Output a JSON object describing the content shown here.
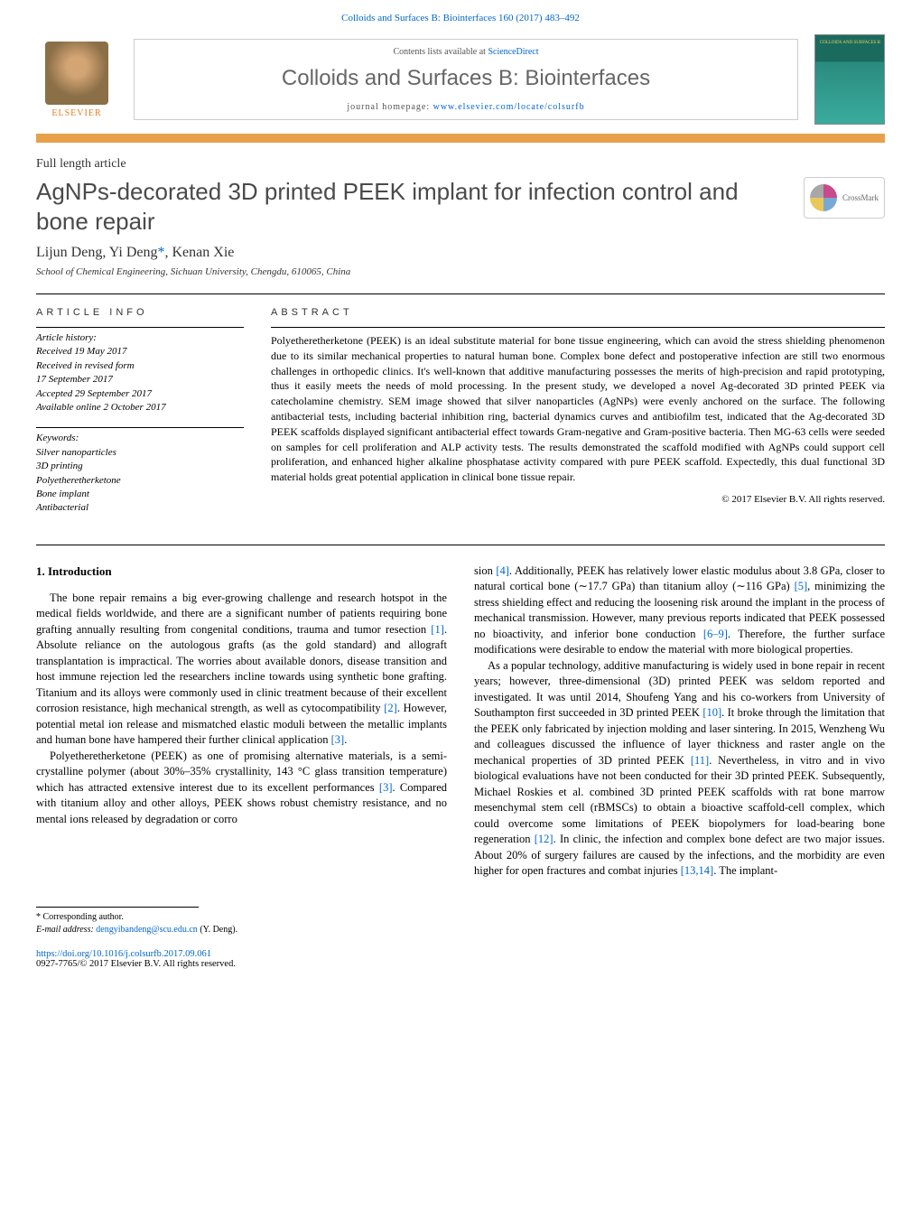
{
  "top_link_prefix": "Colloids and Surfaces B: Biointerfaces 160 (2017) 483–492",
  "header": {
    "contents_prefix": "Contents lists available at ",
    "contents_link": "ScienceDirect",
    "journal_name": "Colloids and Surfaces B: Biointerfaces",
    "homepage_prefix": "journal homepage: ",
    "homepage_url": "www.elsevier.com/locate/colsurfb",
    "elsevier_label": "ELSEVIER",
    "cover_text": "COLLOIDS AND SURFACES B"
  },
  "article_type": "Full length article",
  "title": "AgNPs-decorated 3D printed PEEK implant for infection control and bone repair",
  "crossmark_label": "CrossMark",
  "authors_html": "Lijun Deng, Yi Deng",
  "corresponding_mark": "*",
  "authors_rest": ", Kenan Xie",
  "affiliation": "School of Chemical Engineering, Sichuan University, Chengdu, 610065, China",
  "info": {
    "heading": "article info",
    "history_label": "Article history:",
    "received": "Received 19 May 2017",
    "revised1": "Received in revised form",
    "revised2": "17 September 2017",
    "accepted": "Accepted 29 September 2017",
    "online": "Available online 2 October 2017",
    "keywords_label": "Keywords:",
    "kw1": "Silver nanoparticles",
    "kw2": "3D printing",
    "kw3": "Polyetheretherketone",
    "kw4": "Bone implant",
    "kw5": "Antibacterial"
  },
  "abstract": {
    "heading": "abstract",
    "text": "Polyetheretherketone (PEEK) is an ideal substitute material for bone tissue engineering, which can avoid the stress shielding phenomenon due to its similar mechanical properties to natural human bone. Complex bone defect and postoperative infection are still two enormous challenges in orthopedic clinics. It's well-known that additive manufacturing possesses the merits of high-precision and rapid prototyping, thus it easily meets the needs of mold processing. In the present study, we developed a novel Ag-decorated 3D printed PEEK via catecholamine chemistry. SEM image showed that silver nanoparticles (AgNPs) were evenly anchored on the surface. The following antibacterial tests, including bacterial inhibition ring, bacterial dynamics curves and antibiofilm test, indicated that the Ag-decorated 3D PEEK scaffolds displayed significant antibacterial effect towards Gram-negative and Gram-positive bacteria. Then MG-63 cells were seeded on samples for cell proliferation and ALP activity tests. The results demonstrated the scaffold modified with AgNPs could support cell proliferation, and enhanced higher alkaline phosphatase activity compared with pure PEEK scaffold. Expectedly, this dual functional 3D material holds great potential application in clinical bone tissue repair.",
    "copyright": "© 2017 Elsevier B.V. All rights reserved."
  },
  "body": {
    "intro_heading": "1. Introduction",
    "p1a": "The bone repair remains a big ever-growing challenge and research hotspot in the medical fields worldwide, and there are a significant number of patients requiring bone grafting annually resulting from congenital conditions, trauma and tumor resection ",
    "c1": "[1]",
    "p1b": ". Absolute reliance on the autologous grafts (as the gold standard) and allograft transplantation is impractical. The worries about available donors, disease transition and host immune rejection led the researchers incline towards using synthetic bone grafting. Titanium and its alloys were commonly used in clinic treatment because of their excellent corrosion resistance, high mechanical strength, as well as cytocompatibility ",
    "c2": "[2]",
    "p1c": ". However, potential metal ion release and mismatched elastic moduli between the metallic implants and human bone have hampered their further clinical application ",
    "c3": "[3]",
    "p1d": ".",
    "p2a": "Polyetheretherketone (PEEK) as one of promising alternative materials, is a semi-crystalline polymer (about 30%–35% crystallinity, 143 °C glass transition temperature) which has attracted extensive interest due to its excellent performances ",
    "c3b": "[3]",
    "p2b": ". Compared with titanium alloy and other alloys, PEEK shows robust chemistry resistance, and no mental ions released by degradation or corro",
    "p3a": "sion ",
    "c4": "[4]",
    "p3b": ". Additionally, PEEK has relatively lower elastic modulus about 3.8 GPa, closer to natural cortical bone (∼17.7 GPa) than titanium alloy (∼116 GPa) ",
    "c5": "[5]",
    "p3c": ", minimizing the stress shielding effect and reducing the loosening risk around the implant in the process of mechanical transmission. However, many previous reports indicated that PEEK possessed no bioactivity, and inferior bone conduction ",
    "c69": "[6–9]",
    "p3d": ". Therefore, the further surface modifications were desirable to endow the material with more biological properties.",
    "p4a": "As a popular technology, additive manufacturing is widely used in bone repair in recent years; however, three-dimensional (3D) printed PEEK was seldom reported and investigated. It was until 2014, Shoufeng Yang and his co-workers from University of Southampton first succeeded in 3D printed PEEK ",
    "c10": "[10]",
    "p4b": ". It broke through the limitation that the PEEK only fabricated by injection molding and laser sintering. In 2015, Wenzheng Wu and colleagues discussed the influence of layer thickness and raster angle on the mechanical properties of 3D printed PEEK ",
    "c11": "[11]",
    "p4c": ". Nevertheless, in vitro and in vivo biological evaluations have not been conducted for their 3D printed PEEK. Subsequently, Michael Roskies et al. combined 3D printed PEEK scaffolds with rat bone marrow mesenchymal stem cell (rBMSCs) to obtain a bioactive scaffold-cell complex, which could overcome some limitations of PEEK biopolymers for load-bearing bone regeneration ",
    "c12": "[12]",
    "p4d": ". In clinic, the infection and complex bone defect are two major issues. About 20% of surgery failures are caused by the infections, and the morbidity are even higher for open fractures and combat injuries ",
    "c1314": "[13,14]",
    "p4e": ". The implant-"
  },
  "footer": {
    "corr_label": "* Corresponding author.",
    "email_label": "E-mail address: ",
    "email": "dengyibandeng@scu.edu.cn",
    "email_suffix": " (Y. Deng).",
    "doi": "https://doi.org/10.1016/j.colsurfb.2017.09.061",
    "issn": "0927-7765/© 2017 Elsevier B.V. All rights reserved."
  },
  "colors": {
    "link": "#0066cc",
    "orange_bar": "#e8a04a",
    "title_gray": "#4a4a4a",
    "journal_gray": "#666666"
  }
}
